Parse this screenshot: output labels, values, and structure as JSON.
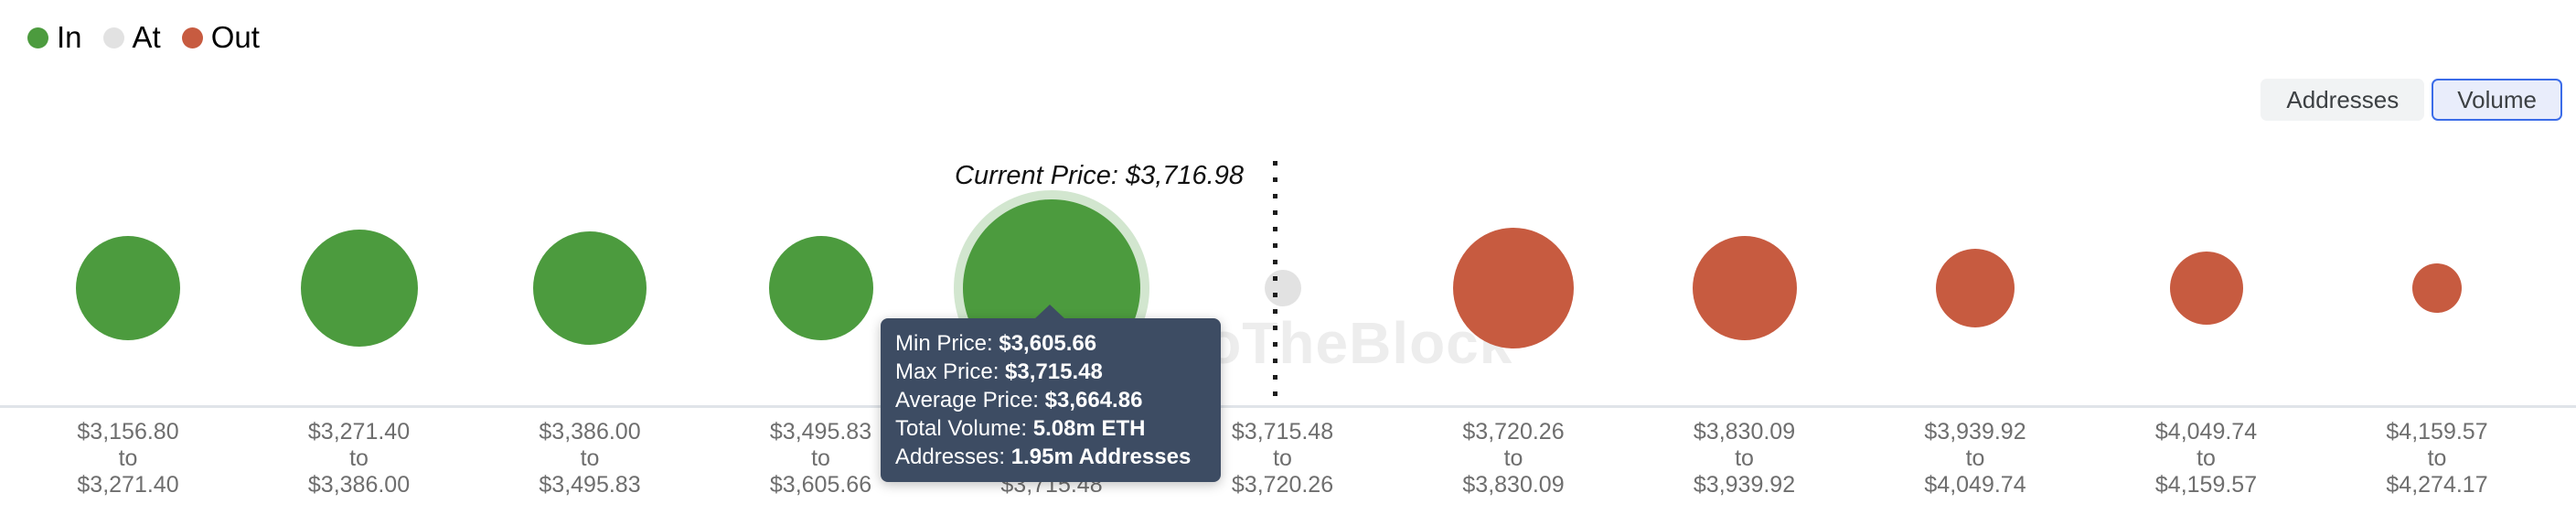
{
  "legend": {
    "items": [
      {
        "label": "In",
        "color": "#4c9b3e"
      },
      {
        "label": "At",
        "color": "#e2e2e2"
      },
      {
        "label": "Out",
        "color": "#c75b40"
      }
    ]
  },
  "toolbar": {
    "buttons": [
      {
        "label": "Addresses",
        "active": false
      },
      {
        "label": "Volume",
        "active": true
      }
    ],
    "active_border_color": "#3b6ce8"
  },
  "watermark": {
    "text": "IntoTheBlock"
  },
  "annotation": {
    "current_price_label": "Current Price: $3,716.98"
  },
  "axis": {
    "separator_word": "to"
  },
  "tooltip": {
    "rows": [
      {
        "label": "Min Price: ",
        "value": "$3,605.66"
      },
      {
        "label": "Max Price: ",
        "value": "$3,715.48"
      },
      {
        "label": "Average Price: ",
        "value": "$3,664.86"
      },
      {
        "label": "Total Volume: ",
        "value": "5.08m ETH"
      },
      {
        "label": "Addresses: ",
        "value": "1.95m Addresses"
      }
    ],
    "background": "#3d4c63"
  },
  "chart_data": {
    "type": "scatter",
    "subtype": "bubble-in-out-money-around-price",
    "title": "",
    "current_price": "$3,716.98",
    "legend": [
      "In",
      "At",
      "Out"
    ],
    "colors": {
      "in": "#4c9b3e",
      "at": "#e2e2e2",
      "out": "#c75b40",
      "halo": "rgba(76,155,62,0.25)"
    },
    "categories": [
      {
        "from": "$3,156.80",
        "to": "$3,271.40"
      },
      {
        "from": "$3,271.40",
        "to": "$3,386.00"
      },
      {
        "from": "$3,386.00",
        "to": "$3,495.83"
      },
      {
        "from": "$3,495.83",
        "to": "$3,605.66"
      },
      {
        "from": "$3,605.66",
        "to": "$3,715.48"
      },
      {
        "from": "$3,715.48",
        "to": "$3,720.26"
      },
      {
        "from": "$3,720.26",
        "to": "$3,830.09"
      },
      {
        "from": "$3,830.09",
        "to": "$3,939.92"
      },
      {
        "from": "$3,939.92",
        "to": "$4,049.74"
      },
      {
        "from": "$4,049.74",
        "to": "$4,159.57"
      },
      {
        "from": "$4,159.57",
        "to": "$4,274.17"
      }
    ],
    "bubbles": [
      {
        "status": "in",
        "radius_px": 57,
        "highlighted": false
      },
      {
        "status": "in",
        "radius_px": 64,
        "highlighted": false
      },
      {
        "status": "in",
        "radius_px": 62,
        "highlighted": false
      },
      {
        "status": "in",
        "radius_px": 57,
        "highlighted": false
      },
      {
        "status": "in",
        "radius_px": 97,
        "highlighted": true
      },
      {
        "status": "at",
        "radius_px": 20,
        "highlighted": false
      },
      {
        "status": "out",
        "radius_px": 66,
        "highlighted": false
      },
      {
        "status": "out",
        "radius_px": 57,
        "highlighted": false
      },
      {
        "status": "out",
        "radius_px": 43,
        "highlighted": false
      },
      {
        "status": "out",
        "radius_px": 40,
        "highlighted": false
      },
      {
        "status": "out",
        "radius_px": 27,
        "highlighted": false
      }
    ],
    "hovered_bucket": {
      "index": 4,
      "min_price": "$3,605.66",
      "max_price": "$3,715.48",
      "average_price": "$3,664.86",
      "total_volume": "5.08m ETH",
      "addresses": "1.95m Addresses"
    },
    "layout_hints": {
      "legend_position": "top-left",
      "grid": false,
      "current_price_line": "dotted-vertical"
    }
  }
}
